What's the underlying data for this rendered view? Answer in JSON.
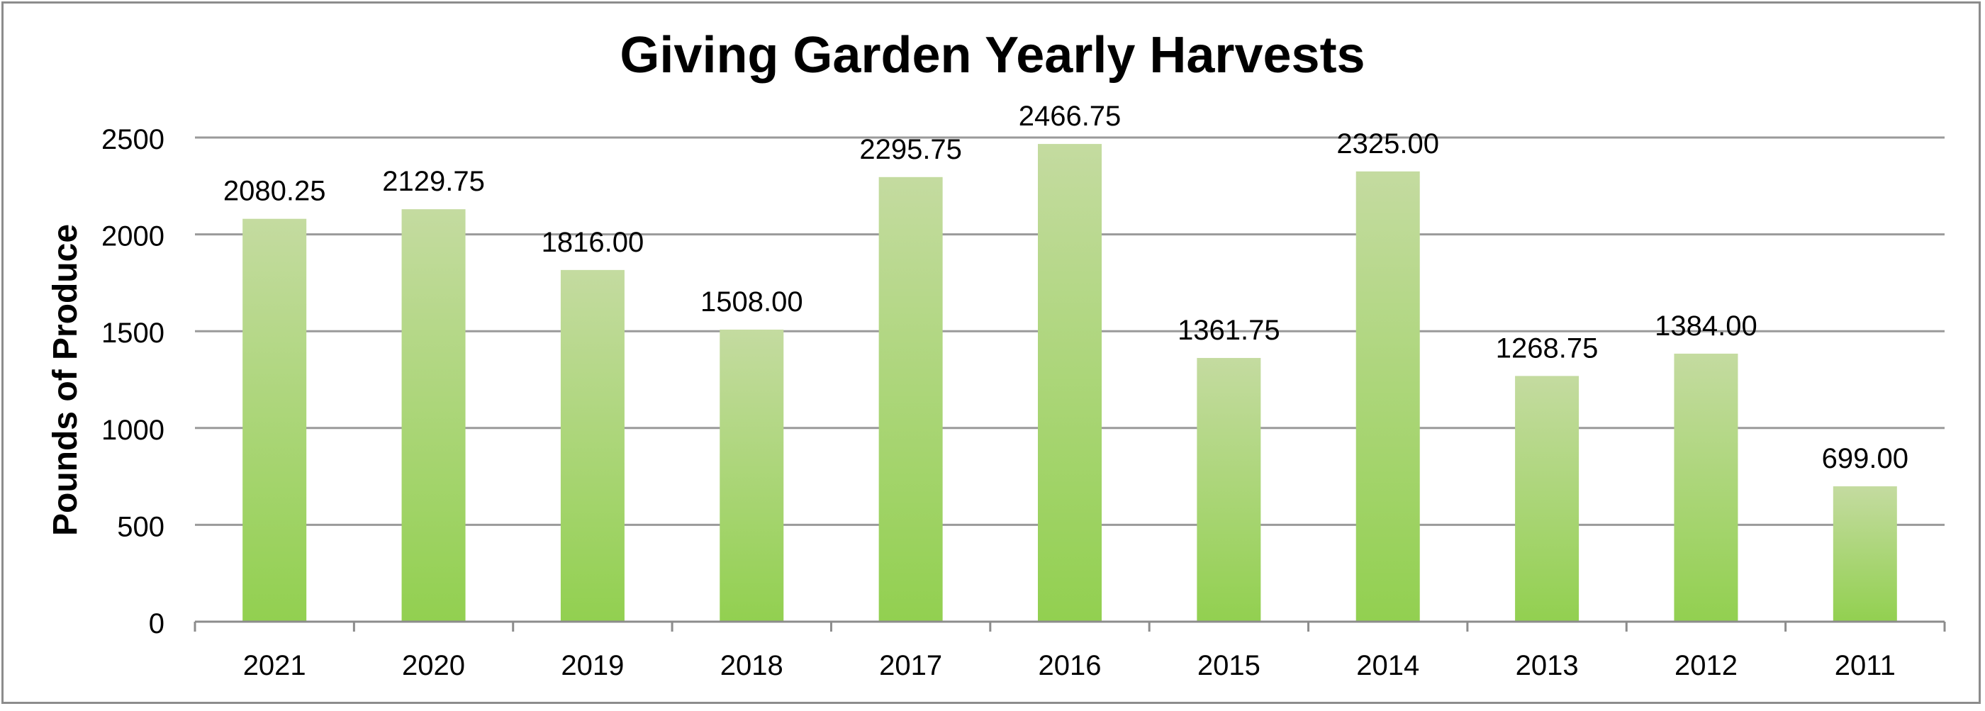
{
  "chart_data": {
    "type": "bar",
    "title": "Giving Garden Yearly Harvests",
    "xlabel": "",
    "ylabel": "Pounds of Produce",
    "categories": [
      "2021",
      "2020",
      "2019",
      "2018",
      "2017",
      "2016",
      "2015",
      "2014",
      "2013",
      "2012",
      "2011"
    ],
    "values": [
      2080.25,
      2129.75,
      1816.0,
      1508.0,
      2295.75,
      2466.75,
      1361.75,
      2325.0,
      1268.75,
      1384.0,
      699.0
    ],
    "data_labels": [
      "2080.25",
      "2129.75",
      "1816.00",
      "1508.00",
      "2295.75",
      "2466.75",
      "1361.75",
      "2325.00",
      "1268.75",
      "1384.00",
      "699.00"
    ],
    "ylim": [
      0,
      2500
    ],
    "yticks": [
      0,
      500,
      1000,
      1500,
      2000,
      2500
    ],
    "grid": true,
    "legend": "none",
    "colors": {
      "bar_top": "#c4dba0",
      "bar_bottom": "#92d050",
      "gridline": "#9a9a9a",
      "axis": "#8c8c8c",
      "text": "#000000"
    }
  }
}
